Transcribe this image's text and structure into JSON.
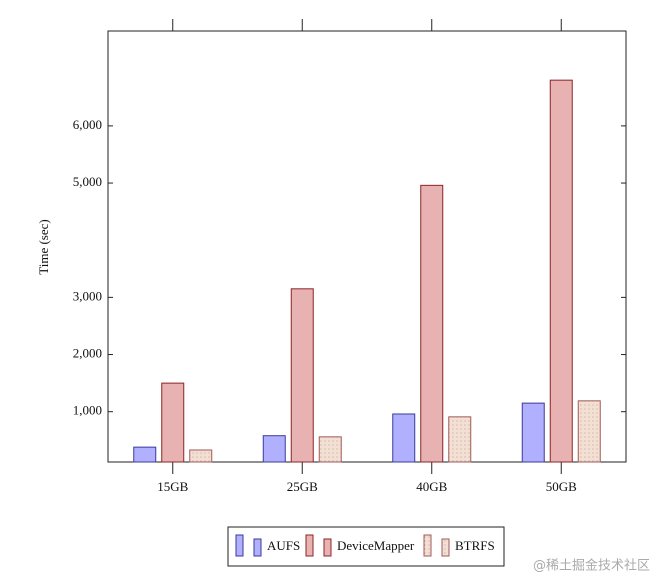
{
  "chart_data": {
    "type": "bar",
    "ylabel": "Time (sec)",
    "categories": [
      "15GB",
      "25GB",
      "40GB",
      "50GB"
    ],
    "series": [
      {
        "name": "AUFS",
        "color": "#b0b0ff",
        "stroke": "#3a3a9a",
        "values": [
          380,
          580,
          960,
          1150
        ]
      },
      {
        "name": "DeviceMapper",
        "color": "#e8b2b2",
        "stroke": "#8b2525",
        "values": [
          1500,
          3150,
          4960,
          6800
        ]
      },
      {
        "name": "BTRFS",
        "color": "#f2e0d4",
        "stroke": "#a05a5a",
        "values": [
          330,
          560,
          910,
          1190
        ]
      }
    ],
    "ylim": [
      120,
      7660
    ],
    "yticks": [
      {
        "value": 1000,
        "label": "1,000"
      },
      {
        "value": 2000,
        "label": "2,000"
      },
      {
        "value": 3000,
        "label": "3,000"
      },
      {
        "value": 5000,
        "label": "5,000"
      },
      {
        "value": 6000,
        "label": "6,000"
      }
    ],
    "legend": "bottom",
    "watermark": "@稀土掘金技术社区"
  }
}
